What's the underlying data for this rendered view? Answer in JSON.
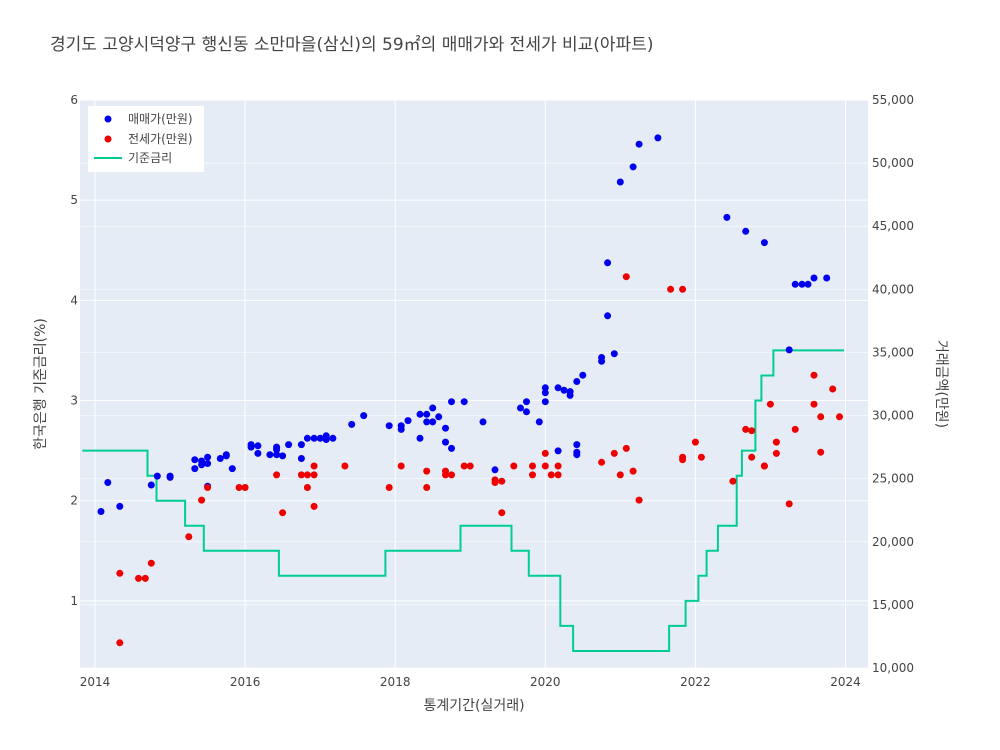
{
  "chart_data": {
    "type": "scatter",
    "title": "경기도 고양시덕양구 행신동 소만마을(삼신)의 59㎡의 매매가와 전세가 비교(아파트)",
    "xlabel": "통계기간(실거래)",
    "ylabel_left": "한국은행 기준금리(%)",
    "ylabel_right": "거래금액(만원)",
    "xlim": [
      2013.8,
      2024.3
    ],
    "ylim_left": [
      0.33,
      6.0
    ],
    "ylim_right": [
      10000,
      55000
    ],
    "x_ticks": [
      "2014",
      "2016",
      "2018",
      "2020",
      "2022",
      "2024"
    ],
    "x_tick_values": [
      2014,
      2016,
      2018,
      2020,
      2022,
      2024
    ],
    "y_left_ticks": [
      "1",
      "2",
      "3",
      "4",
      "5",
      "6"
    ],
    "y_left_tick_values": [
      1,
      2,
      3,
      4,
      5,
      6
    ],
    "y_right_ticks": [
      "10,000",
      "15,000",
      "20,000",
      "25,000",
      "30,000",
      "35,000",
      "40,000",
      "45,000",
      "50,000",
      "55,000"
    ],
    "y_right_tick_values": [
      10000,
      15000,
      20000,
      25000,
      30000,
      35000,
      40000,
      45000,
      50000,
      55000
    ],
    "grid": true,
    "legend_position": "top-left",
    "colors": {
      "sale": "#0000ee",
      "jeonse": "#ee0000",
      "rate": "#00cc96",
      "plot_bg": "#e5ecf6"
    },
    "series": [
      {
        "name": "매매가(만원)",
        "axis": "right",
        "kind": "markers",
        "x": [
          2014.08,
          2014.17,
          2014.33,
          2014.75,
          2014.83,
          2015.0,
          2015.0,
          2015.33,
          2015.33,
          2015.42,
          2015.42,
          2015.5,
          2015.5,
          2015.5,
          2015.67,
          2015.75,
          2015.75,
          2015.83,
          2016.08,
          2016.08,
          2016.17,
          2016.17,
          2016.33,
          2016.42,
          2016.42,
          2016.42,
          2016.5,
          2016.58,
          2016.75,
          2016.75,
          2016.83,
          2016.92,
          2017.0,
          2017.08,
          2017.08,
          2017.08,
          2017.17,
          2017.42,
          2017.58,
          2017.92,
          2018.08,
          2018.08,
          2018.17,
          2018.33,
          2018.33,
          2018.42,
          2018.42,
          2018.5,
          2018.5,
          2018.58,
          2018.67,
          2018.67,
          2018.75,
          2018.75,
          2018.92,
          2019.17,
          2019.33,
          2019.67,
          2019.75,
          2019.75,
          2019.92,
          2020.0,
          2020.0,
          2020.0,
          2020.17,
          2020.17,
          2020.25,
          2020.33,
          2020.33,
          2020.42,
          2020.42,
          2020.42,
          2020.42,
          2020.5,
          2020.75,
          2020.75,
          2020.83,
          2020.83,
          2020.92,
          2021.0,
          2021.17,
          2021.25,
          2021.5,
          2022.42,
          2022.67,
          2022.92,
          2023.25,
          2023.33,
          2023.42,
          2023.5,
          2023.58,
          2023.75
        ],
        "y": [
          22400,
          24700,
          22800,
          24500,
          25200,
          25100,
          25200,
          26500,
          25800,
          26100,
          26400,
          26700,
          26200,
          24400,
          26600,
          26800,
          26900,
          25800,
          27700,
          27500,
          27600,
          27000,
          26900,
          27500,
          27300,
          26900,
          26800,
          27700,
          27700,
          26600,
          28200,
          28200,
          28200,
          28400,
          28100,
          28200,
          28200,
          29300,
          30000,
          29200,
          29200,
          28900,
          29600,
          30100,
          28200,
          30100,
          29500,
          30600,
          29500,
          29900,
          29000,
          27900,
          31100,
          27400,
          31100,
          29500,
          25700,
          30600,
          31100,
          30300,
          29500,
          32200,
          31800,
          31100,
          32200,
          27200,
          32000,
          31900,
          31600,
          27700,
          27100,
          26900,
          32700,
          33200,
          34600,
          34300,
          37900,
          42100,
          34900,
          48500,
          49700,
          51500,
          52000,
          45700,
          44600,
          43700,
          35200,
          40400,
          40400,
          40400,
          40900,
          40900
        ]
      },
      {
        "name": "전세가(만원)",
        "axis": "right",
        "kind": "markers",
        "x": [
          2014.33,
          2014.33,
          2014.58,
          2014.67,
          2014.75,
          2015.25,
          2015.42,
          2015.5,
          2015.92,
          2016.0,
          2016.42,
          2016.5,
          2016.75,
          2016.83,
          2016.83,
          2016.92,
          2016.92,
          2016.92,
          2017.33,
          2017.92,
          2018.08,
          2018.42,
          2018.42,
          2018.67,
          2018.67,
          2018.75,
          2018.92,
          2019.0,
          2019.33,
          2019.33,
          2019.42,
          2019.42,
          2019.58,
          2019.83,
          2019.83,
          2020.0,
          2020.0,
          2020.08,
          2020.17,
          2020.17,
          2020.75,
          2020.92,
          2021.0,
          2021.08,
          2021.08,
          2021.17,
          2021.25,
          2021.67,
          2021.83,
          2021.83,
          2021.83,
          2022.0,
          2022.08,
          2022.5,
          2022.67,
          2022.75,
          2022.75,
          2022.92,
          2022.92,
          2023.0,
          2023.08,
          2023.08,
          2023.25,
          2023.33,
          2023.58,
          2023.58,
          2023.67,
          2023.67,
          2023.83,
          2023.92
        ],
        "y": [
          17500,
          12000,
          17100,
          17100,
          18300,
          20400,
          23300,
          24300,
          24300,
          24300,
          25300,
          22300,
          25300,
          24300,
          25300,
          25300,
          22800,
          26000,
          26000,
          24300,
          26000,
          25600,
          24300,
          25600,
          25300,
          25300,
          26000,
          26000,
          24900,
          24700,
          22300,
          24800,
          26000,
          26000,
          25300,
          26000,
          27000,
          25300,
          25300,
          26000,
          26300,
          27000,
          25300,
          27400,
          41000,
          25600,
          23300,
          40000,
          40000,
          26700,
          26500,
          27900,
          26700,
          24800,
          28900,
          28800,
          26700,
          26000,
          26000,
          30900,
          27900,
          27000,
          23000,
          28900,
          33200,
          30900,
          29900,
          27100,
          32100,
          29900
        ]
      },
      {
        "name": "기준금리",
        "axis": "left",
        "kind": "step-line",
        "x": [
          2013.83,
          2014.62,
          2014.7,
          2014.82,
          2015.2,
          2015.45,
          2016.45,
          2017.87,
          2018.87,
          2019.55,
          2019.78,
          2020.2,
          2020.37,
          2021.65,
          2021.87,
          2021.96,
          2022.04,
          2022.15,
          2022.3,
          2022.45,
          2022.55,
          2022.62,
          2022.7,
          2022.8,
          2022.88,
          2023.04,
          2023.2,
          2023.98
        ],
        "y": [
          2.5,
          2.5,
          2.25,
          2.0,
          1.75,
          1.5,
          1.25,
          1.5,
          1.75,
          1.5,
          1.25,
          0.75,
          0.5,
          0.75,
          1.0,
          1.0,
          1.25,
          1.5,
          1.75,
          1.75,
          2.25,
          2.5,
          2.5,
          3.0,
          3.25,
          3.5,
          3.5,
          3.5
        ]
      }
    ]
  }
}
